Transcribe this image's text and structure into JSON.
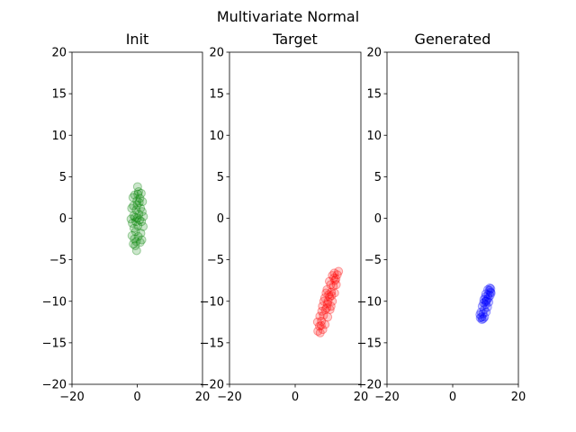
{
  "figure": {
    "suptitle": "Multivariate Normal"
  },
  "chart_data": [
    {
      "type": "scatter",
      "title": "Init",
      "xlabel": "",
      "ylabel": "",
      "xlim": [
        -20,
        20
      ],
      "ylim": [
        -20,
        20
      ],
      "xticks": [
        "−20",
        "0",
        "20"
      ],
      "yticks": [
        "20",
        "15",
        "10",
        "5",
        "0",
        "−5",
        "−10",
        "−15",
        "−20"
      ],
      "grid": false,
      "series": [
        {
          "color": "#008000",
          "alpha": 0.2,
          "points": [
            [
              0.0,
              0.0
            ],
            [
              -1.2,
              1.5
            ],
            [
              1.1,
              -1.8
            ],
            [
              0.4,
              3.2
            ],
            [
              -0.6,
              -3.3
            ],
            [
              1.5,
              0.8
            ],
            [
              -1.5,
              -0.6
            ],
            [
              0.8,
              2.4
            ],
            [
              -0.9,
              -2.5
            ],
            [
              0.2,
              -0.9
            ],
            [
              -0.3,
              1.0
            ],
            [
              1.3,
              -0.4
            ],
            [
              -1.1,
              0.3
            ],
            [
              0.6,
              1.9
            ],
            [
              -0.5,
              -1.6
            ],
            [
              0.9,
              -2.9
            ],
            [
              -0.8,
              2.8
            ],
            [
              1.6,
              2.0
            ],
            [
              -1.6,
              -2.1
            ],
            [
              0.1,
              3.8
            ],
            [
              -0.2,
              -3.9
            ],
            [
              1.8,
              -1.0
            ],
            [
              -1.7,
              1.2
            ],
            [
              0.5,
              0.5
            ],
            [
              -0.4,
              -0.4
            ],
            [
              1.0,
              1.2
            ],
            [
              -1.0,
              -1.2
            ],
            [
              0.3,
              -2.2
            ],
            [
              -0.1,
              2.1
            ],
            [
              1.4,
              -2.6
            ],
            [
              -1.3,
              2.5
            ],
            [
              0.7,
              -0.2
            ],
            [
              -0.7,
              0.1
            ],
            [
              1.9,
              0.2
            ],
            [
              -1.9,
              -0.1
            ],
            [
              0.2,
              2.9
            ],
            [
              -0.3,
              -2.8
            ],
            [
              1.2,
              3.0
            ],
            [
              -1.2,
              -3.1
            ],
            [
              0.0,
              1.6
            ]
          ]
        }
      ]
    },
    {
      "type": "scatter",
      "title": "Target",
      "xlabel": "",
      "ylabel": "",
      "xlim": [
        -20,
        20
      ],
      "ylim": [
        -20,
        20
      ],
      "xticks": [
        "−20",
        "0",
        "20"
      ],
      "yticks": [
        "20",
        "15",
        "10",
        "5",
        "0",
        "−5",
        "−10",
        "−15",
        "−20"
      ],
      "grid": false,
      "series": [
        {
          "color": "#ff0000",
          "alpha": 0.2,
          "points": [
            [
              10.0,
              -10.0
            ],
            [
              13.2,
              -6.4
            ],
            [
              12.8,
              -6.8
            ],
            [
              12.1,
              -7.5
            ],
            [
              11.6,
              -8.2
            ],
            [
              11.0,
              -8.9
            ],
            [
              10.5,
              -9.5
            ],
            [
              9.8,
              -10.3
            ],
            [
              9.2,
              -11.0
            ],
            [
              8.6,
              -11.7
            ],
            [
              8.0,
              -12.4
            ],
            [
              7.4,
              -13.0
            ],
            [
              6.9,
              -13.6
            ],
            [
              6.8,
              -12.5
            ],
            [
              7.5,
              -11.8
            ],
            [
              8.3,
              -10.6
            ],
            [
              9.0,
              -9.6
            ],
            [
              9.7,
              -8.6
            ],
            [
              10.4,
              -7.6
            ],
            [
              11.3,
              -6.9
            ],
            [
              11.9,
              -6.6
            ],
            [
              12.5,
              -8.0
            ],
            [
              12.0,
              -9.0
            ],
            [
              11.3,
              -10.0
            ],
            [
              10.6,
              -11.0
            ],
            [
              9.9,
              -11.9
            ],
            [
              9.1,
              -12.8
            ],
            [
              8.4,
              -13.4
            ],
            [
              7.6,
              -13.8
            ],
            [
              8.1,
              -11.2
            ],
            [
              9.4,
              -9.0
            ],
            [
              10.8,
              -8.0
            ],
            [
              11.8,
              -7.2
            ],
            [
              12.4,
              -7.3
            ],
            [
              7.9,
              -12.9
            ],
            [
              9.6,
              -10.8
            ],
            [
              10.2,
              -9.2
            ],
            [
              11.1,
              -9.3
            ],
            [
              8.7,
              -10.0
            ],
            [
              10.9,
              -10.6
            ]
          ]
        }
      ]
    },
    {
      "type": "scatter",
      "title": "Generated",
      "xlabel": "",
      "ylabel": "",
      "xlim": [
        -20,
        20
      ],
      "ylim": [
        -20,
        20
      ],
      "xticks": [
        "−20",
        "0",
        "20"
      ],
      "yticks": [
        "20",
        "15",
        "10",
        "5",
        "0",
        "−5",
        "−10",
        "−15",
        "−20"
      ],
      "grid": false,
      "series": [
        {
          "color": "#0000ff",
          "alpha": 0.2,
          "points": [
            [
              10.0,
              -10.0
            ],
            [
              11.6,
              -8.5
            ],
            [
              11.2,
              -8.7
            ],
            [
              10.8,
              -9.2
            ],
            [
              10.4,
              -9.8
            ],
            [
              10.0,
              -10.4
            ],
            [
              9.6,
              -11.0
            ],
            [
              9.2,
              -11.5
            ],
            [
              8.8,
              -11.9
            ],
            [
              8.4,
              -12.0
            ],
            [
              9.0,
              -10.6
            ],
            [
              9.5,
              -9.8
            ],
            [
              10.1,
              -9.1
            ],
            [
              10.7,
              -8.6
            ],
            [
              11.4,
              -9.3
            ],
            [
              11.0,
              -10.1
            ],
            [
              10.6,
              -10.7
            ],
            [
              10.2,
              -11.3
            ],
            [
              9.7,
              -11.9
            ],
            [
              9.3,
              -12.1
            ],
            [
              8.6,
              -11.3
            ],
            [
              9.9,
              -9.5
            ],
            [
              11.5,
              -8.9
            ],
            [
              8.9,
              -12.2
            ],
            [
              10.3,
              -10.0
            ],
            [
              11.7,
              -9.0
            ],
            [
              8.3,
              -11.6
            ],
            [
              9.4,
              -10.2
            ],
            [
              10.9,
              -9.6
            ],
            [
              11.3,
              -8.4
            ]
          ]
        }
      ]
    }
  ]
}
